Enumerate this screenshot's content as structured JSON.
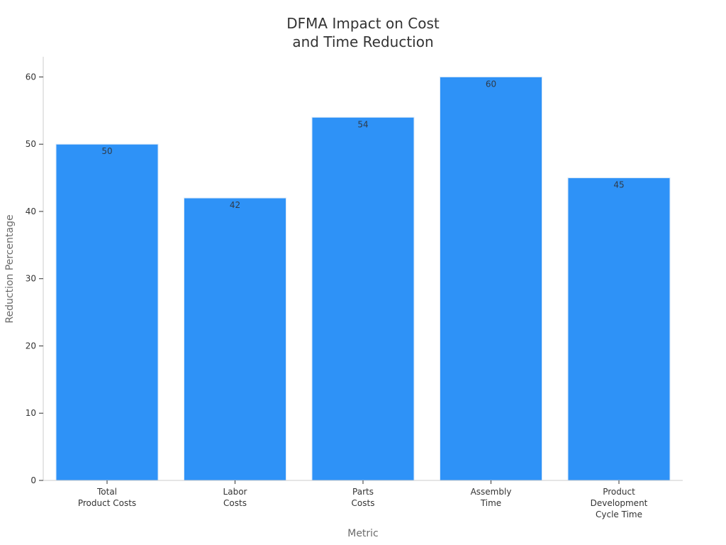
{
  "chart_data": {
    "type": "bar",
    "title": [
      "DFMA Impact on Cost",
      "and Time Reduction"
    ],
    "xlabel": "Metric",
    "ylabel": "Reduction Percentage",
    "categories": [
      [
        "Total",
        "Product Costs"
      ],
      [
        "Labor",
        "Costs"
      ],
      [
        "Parts",
        "Costs"
      ],
      [
        "Assembly",
        "Time"
      ],
      [
        "Product",
        "Development",
        "Cycle Time"
      ]
    ],
    "values": [
      50,
      42,
      54,
      60,
      45
    ],
    "ylim": [
      0,
      63
    ],
    "yticks": [
      0,
      10,
      20,
      30,
      40,
      50,
      60
    ],
    "bar_color": "#2e92f7",
    "grid": false,
    "legend": "none"
  }
}
